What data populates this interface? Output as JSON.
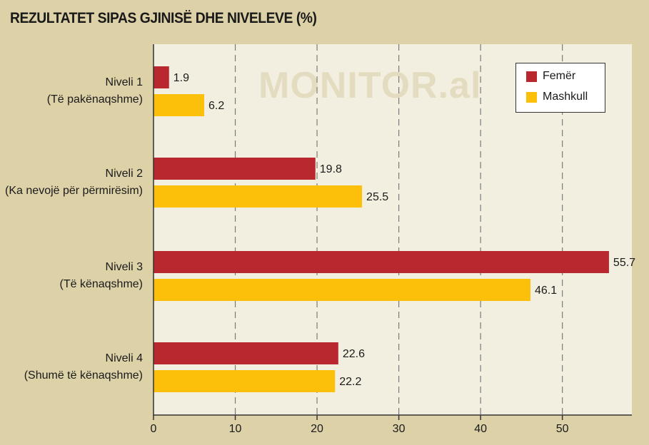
{
  "title": "REZULTATET SIPAS GJINISË DHE NIVELEVE (%)",
  "watermark": "MONITOR.al",
  "colors": {
    "femer": "#b8282e",
    "mashkull": "#fcc00a"
  },
  "chart_data": {
    "type": "bar",
    "orientation": "horizontal",
    "categories": [
      [
        "Niveli 1",
        "(Të pakënaqshme)"
      ],
      [
        "Niveli 2",
        "(Ka nevojë për përmirësim)"
      ],
      [
        "Niveli 3",
        "(Të kënaqshme)"
      ],
      [
        "Niveli 4",
        "(Shumë të kënaqshme)"
      ]
    ],
    "series": [
      {
        "name": "Femër",
        "values": [
          1.9,
          19.8,
          55.7,
          22.6
        ]
      },
      {
        "name": "Mashkull",
        "values": [
          6.2,
          25.5,
          46.1,
          22.2
        ]
      }
    ],
    "xlim": [
      0,
      58.5
    ],
    "xticks": [
      0,
      10,
      20,
      30,
      40,
      50
    ],
    "grid": "vertical dashed",
    "legend_position": "top-right"
  }
}
